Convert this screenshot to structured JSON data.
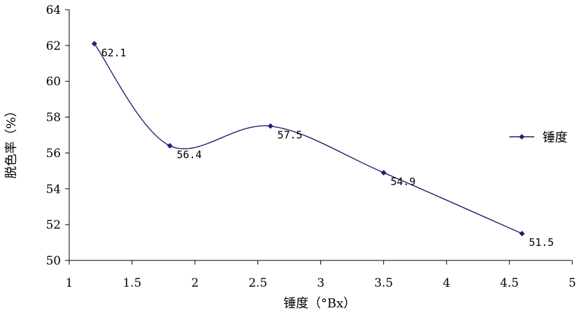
{
  "chart_data": {
    "type": "line",
    "title": "",
    "xlabel": "锤度（°Bx）",
    "ylabel": "脱色率（%）",
    "xlim": [
      1,
      5
    ],
    "ylim": [
      50,
      64
    ],
    "x_ticks": [
      "1",
      "1.5",
      "2",
      "2.5",
      "3",
      "3.5",
      "4",
      "4.5",
      "5"
    ],
    "y_ticks": [
      "50",
      "52",
      "54",
      "56",
      "58",
      "60",
      "62",
      "64"
    ],
    "grid": false,
    "legend": "right",
    "series": [
      {
        "name": "锤度",
        "color": "#1f1f6e",
        "marker": "diamond",
        "smooth": true,
        "x": [
          1.2,
          1.8,
          2.6,
          3.5,
          4.6
        ],
        "y": [
          62.1,
          56.4,
          57.5,
          54.9,
          51.5
        ],
        "labels": [
          "62.1",
          "56.4",
          "57.5",
          "54.9",
          "51.5"
        ]
      }
    ]
  }
}
